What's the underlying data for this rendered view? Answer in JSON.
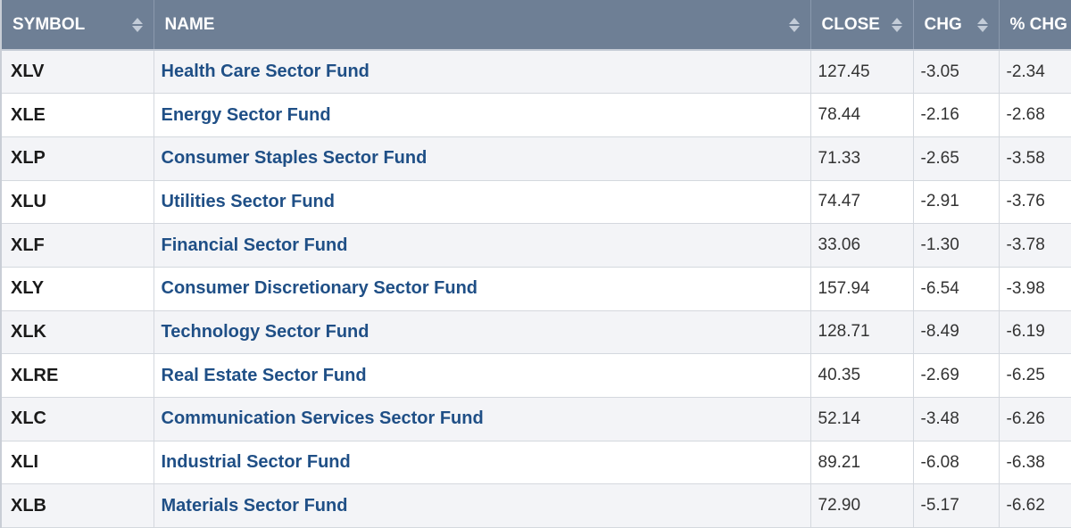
{
  "table": {
    "headers": {
      "symbol": "SYMBOL",
      "name": "NAME",
      "close": "CLOSE",
      "chg": "CHG",
      "pct_chg": "% CHG"
    },
    "sort_icon": "sort-arrows-icon",
    "colors": {
      "header_bg": "#6e7f95",
      "header_text": "#ffffff",
      "link": "#1f4f86",
      "row_alt": "#f3f4f7"
    },
    "rows": [
      {
        "symbol": "XLV",
        "name": "Health Care Sector Fund",
        "close": "127.45",
        "chg": "-3.05",
        "pct_chg": "-2.34"
      },
      {
        "symbol": "XLE",
        "name": "Energy Sector Fund",
        "close": "78.44",
        "chg": "-2.16",
        "pct_chg": "-2.68"
      },
      {
        "symbol": "XLP",
        "name": "Consumer Staples Sector Fund",
        "close": "71.33",
        "chg": "-2.65",
        "pct_chg": "-3.58"
      },
      {
        "symbol": "XLU",
        "name": "Utilities Sector Fund",
        "close": "74.47",
        "chg": "-2.91",
        "pct_chg": "-3.76"
      },
      {
        "symbol": "XLF",
        "name": "Financial Sector Fund",
        "close": "33.06",
        "chg": "-1.30",
        "pct_chg": "-3.78"
      },
      {
        "symbol": "XLY",
        "name": "Consumer Discretionary Sector Fund",
        "close": "157.94",
        "chg": "-6.54",
        "pct_chg": "-3.98"
      },
      {
        "symbol": "XLK",
        "name": "Technology Sector Fund",
        "close": "128.71",
        "chg": "-8.49",
        "pct_chg": "-6.19"
      },
      {
        "symbol": "XLRE",
        "name": "Real Estate Sector Fund",
        "close": "40.35",
        "chg": "-2.69",
        "pct_chg": "-6.25"
      },
      {
        "symbol": "XLC",
        "name": "Communication Services Sector Fund",
        "close": "52.14",
        "chg": "-3.48",
        "pct_chg": "-6.26"
      },
      {
        "symbol": "XLI",
        "name": "Industrial Sector Fund",
        "close": "89.21",
        "chg": "-6.08",
        "pct_chg": "-6.38"
      },
      {
        "symbol": "XLB",
        "name": "Materials Sector Fund",
        "close": "72.90",
        "chg": "-5.17",
        "pct_chg": "-6.62"
      }
    ]
  }
}
